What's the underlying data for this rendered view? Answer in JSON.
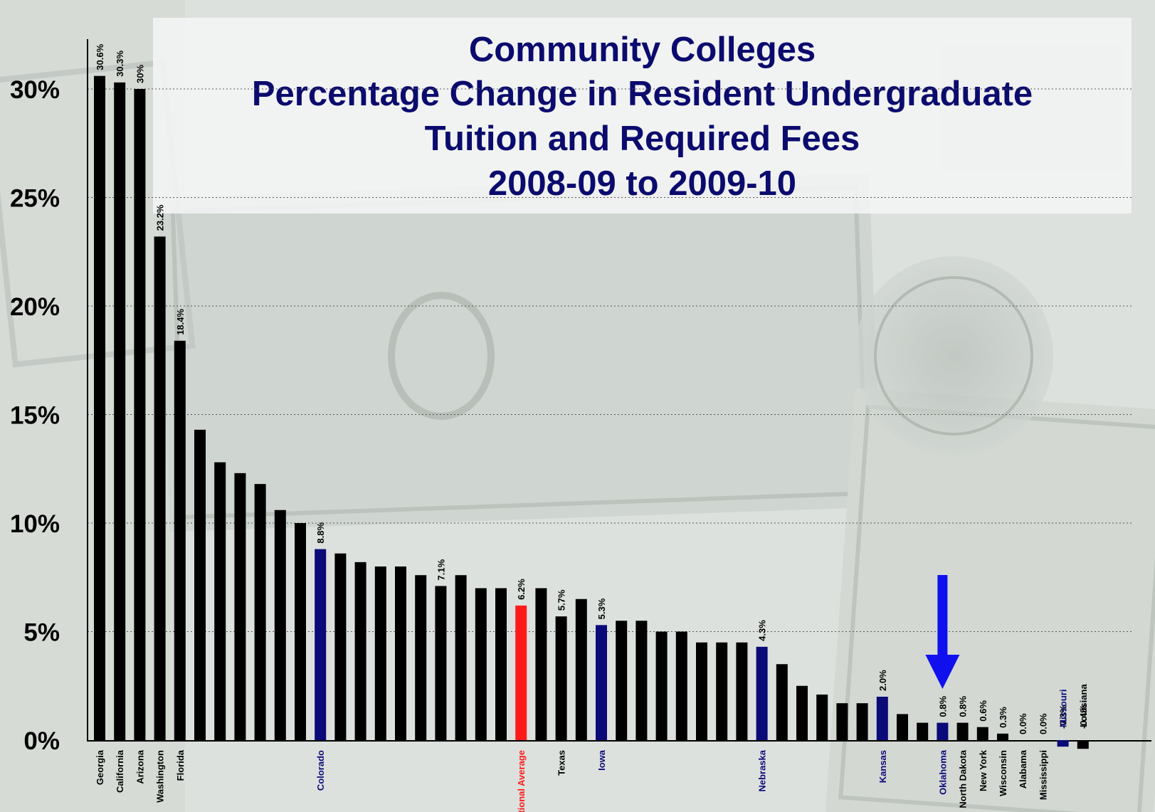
{
  "chart_data": {
    "type": "bar",
    "title": [
      "Community Colleges",
      "Percentage Change in Resident Undergraduate",
      "Tuition and Required Fees",
      "2008-09 to 2009-10"
    ],
    "xlabel": "",
    "ylabel": "",
    "ylim": [
      0,
      32
    ],
    "yticks": [
      "0%",
      "5%",
      "10%",
      "15%",
      "20%",
      "25%",
      "30%"
    ],
    "yticks_values": [
      0,
      5,
      10,
      15,
      20,
      25,
      30
    ],
    "grid": "horizontal dotted",
    "colors": {
      "default": "#000000",
      "highlight": "#0a0a78",
      "average": "#ff1a1a",
      "arrow": "#1010ee"
    },
    "arrow": {
      "points_to": "Oklahoma"
    },
    "bars": [
      {
        "value": 30.6,
        "label": "30.6%",
        "category": "Georgia",
        "color": "default"
      },
      {
        "value": 30.3,
        "label": "30.3%",
        "category": "California",
        "color": "default"
      },
      {
        "value": 30.0,
        "label": "30%",
        "category": "Arizona",
        "color": "default"
      },
      {
        "value": 23.2,
        "label": "23.2%",
        "category": "Washington",
        "color": "default"
      },
      {
        "value": 18.4,
        "label": "18.4%",
        "category": "Florida",
        "color": "default"
      },
      {
        "value": 14.3,
        "label": "",
        "category": "",
        "color": "default"
      },
      {
        "value": 12.8,
        "label": "",
        "category": "",
        "color": "default"
      },
      {
        "value": 12.3,
        "label": "",
        "category": "",
        "color": "default"
      },
      {
        "value": 11.8,
        "label": "",
        "category": "",
        "color": "default"
      },
      {
        "value": 10.6,
        "label": "",
        "category": "",
        "color": "default"
      },
      {
        "value": 10.0,
        "label": "",
        "category": "",
        "color": "default"
      },
      {
        "value": 8.8,
        "label": "8.8%",
        "category": "Colorado",
        "color": "highlight"
      },
      {
        "value": 8.6,
        "label": "",
        "category": "",
        "color": "default"
      },
      {
        "value": 8.2,
        "label": "",
        "category": "",
        "color": "default"
      },
      {
        "value": 8.0,
        "label": "",
        "category": "",
        "color": "default"
      },
      {
        "value": 8.0,
        "label": "",
        "category": "",
        "color": "default"
      },
      {
        "value": 7.6,
        "label": "",
        "category": "",
        "color": "default"
      },
      {
        "value": 7.1,
        "label": "7.1%",
        "category": "",
        "color": "default"
      },
      {
        "value": 7.6,
        "label": "",
        "category": "",
        "color": "default"
      },
      {
        "value": 7.0,
        "label": "",
        "category": "",
        "color": "default"
      },
      {
        "value": 7.0,
        "label": "",
        "category": "",
        "color": "default"
      },
      {
        "value": 6.2,
        "label": "6.2%",
        "category": "National Average",
        "color": "average"
      },
      {
        "value": 7.0,
        "label": "",
        "category": "",
        "color": "default"
      },
      {
        "value": 5.7,
        "label": "5.7%",
        "category": "Texas",
        "color": "default"
      },
      {
        "value": 6.5,
        "label": "",
        "category": "",
        "color": "default"
      },
      {
        "value": 5.3,
        "label": "5.3%",
        "category": "Iowa",
        "color": "highlight"
      },
      {
        "value": 5.5,
        "label": "",
        "category": "",
        "color": "default"
      },
      {
        "value": 5.5,
        "label": "",
        "category": "",
        "color": "default"
      },
      {
        "value": 5.0,
        "label": "",
        "category": "",
        "color": "default"
      },
      {
        "value": 5.0,
        "label": "",
        "category": "",
        "color": "default"
      },
      {
        "value": 4.5,
        "label": "",
        "category": "",
        "color": "default"
      },
      {
        "value": 4.5,
        "label": "",
        "category": "",
        "color": "default"
      },
      {
        "value": 4.5,
        "label": "",
        "category": "",
        "color": "default"
      },
      {
        "value": 4.3,
        "label": "4.3%",
        "category": "Nebraska",
        "color": "highlight"
      },
      {
        "value": 3.5,
        "label": "",
        "category": "",
        "color": "default"
      },
      {
        "value": 2.5,
        "label": "",
        "category": "",
        "color": "default"
      },
      {
        "value": 2.1,
        "label": "",
        "category": "",
        "color": "default"
      },
      {
        "value": 1.7,
        "label": "",
        "category": "",
        "color": "default"
      },
      {
        "value": 1.7,
        "label": "",
        "category": "",
        "color": "default"
      },
      {
        "value": 2.0,
        "label": "2.0%",
        "category": "Kansas",
        "color": "highlight"
      },
      {
        "value": 1.2,
        "label": "",
        "category": "",
        "color": "default"
      },
      {
        "value": 0.8,
        "label": "",
        "category": "",
        "color": "default"
      },
      {
        "value": 0.8,
        "label": "0.8%",
        "category": "Oklahoma",
        "color": "highlight"
      },
      {
        "value": 0.8,
        "label": "0.8%",
        "category": "North Dakota",
        "color": "default"
      },
      {
        "value": 0.6,
        "label": "0.6%",
        "category": "New York",
        "color": "default"
      },
      {
        "value": 0.3,
        "label": "0.3%",
        "category": "Wisconsin",
        "color": "default"
      },
      {
        "value": 0.0,
        "label": "0.0%",
        "category": "Alabama",
        "color": "default"
      },
      {
        "value": 0.0,
        "label": "0.0%",
        "category": "Mississippi",
        "color": "default"
      },
      {
        "value": -0.3,
        "label": "-0.3%",
        "category": "Missouri",
        "color": "highlight"
      },
      {
        "value": -0.4,
        "label": "-0.4%",
        "category": "Louisiana",
        "color": "default"
      }
    ]
  }
}
